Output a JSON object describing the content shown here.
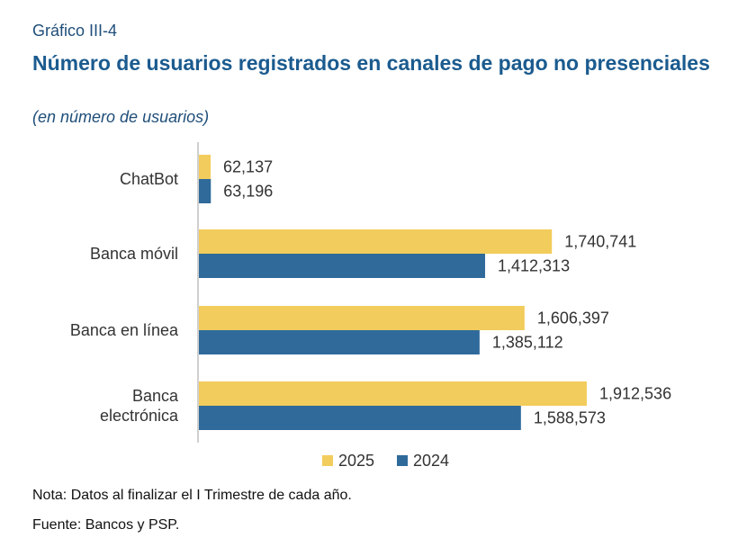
{
  "header": {
    "chart_label": "Gráfico III-4",
    "title": "Número de usuarios registrados en canales de pago no presenciales",
    "subtitle": "(en número de usuarios)"
  },
  "footer": {
    "note": "Nota: Datos al finalizar el I Trimestre de cada año.",
    "source": "Fuente: Bancos y PSP."
  },
  "colors": {
    "2025": "#f2cc5c",
    "2024": "#2f6a9b"
  },
  "chart_data": {
    "type": "bar",
    "orientation": "horizontal",
    "title": "Número de usuarios registrados en canales de pago no presenciales",
    "subtitle": "(en número de usuarios)",
    "categories": [
      "ChatBot",
      "Banca móvil",
      "Banca en línea",
      "Banca electrónica"
    ],
    "category_lines": [
      [
        "ChatBot"
      ],
      [
        "Banca móvil"
      ],
      [
        "Banca en línea"
      ],
      [
        "Banca",
        "electrónica"
      ]
    ],
    "series": [
      {
        "name": "2025",
        "values": [
          62137,
          1740741,
          1606397,
          1912536
        ],
        "labels": [
          "62,137",
          "1,740,741",
          "1,606,397",
          "1,912,536"
        ]
      },
      {
        "name": "2024",
        "values": [
          63196,
          1412313,
          1385112,
          1588573
        ],
        "labels": [
          "63,196",
          "1,412,313",
          "1,385,112",
          "1,588,573"
        ]
      }
    ],
    "xlim": [
      0,
      2600000
    ],
    "grid": false,
    "legend": "bottom"
  }
}
